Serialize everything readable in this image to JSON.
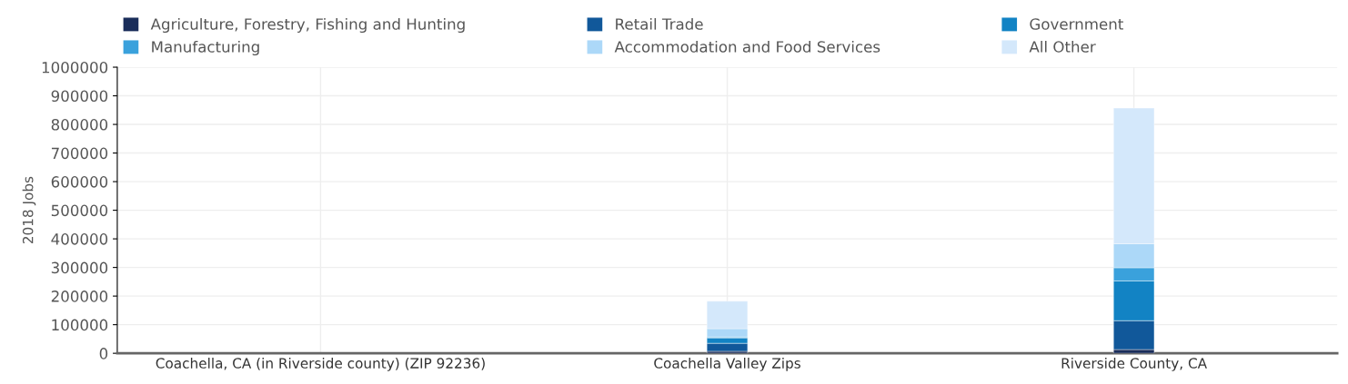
{
  "chart_data": {
    "type": "bar",
    "stacked": true,
    "ylabel": "2018 Jobs",
    "categories": [
      "Coachella, CA (in Riverside county) (ZIP 92236)",
      "Coachella Valley Zips",
      "Riverside County, CA"
    ],
    "series": [
      {
        "name": "Agriculture, Forestry, Fishing and Hunting",
        "color": "#1a2d5a",
        "values": [
          null,
          7000,
          13000
        ]
      },
      {
        "name": "Retail Trade",
        "color": "#11589a",
        "values": [
          null,
          28000,
          101000
        ]
      },
      {
        "name": "Government",
        "color": "#1283c4",
        "values": [
          null,
          19000,
          139000
        ]
      },
      {
        "name": "Manufacturing",
        "color": "#3aa1dc",
        "values": [
          null,
          3000,
          46000
        ]
      },
      {
        "name": "Accommodation and Food Services",
        "color": "#acd8f8",
        "values": [
          null,
          29000,
          84000
        ]
      },
      {
        "name": "All Other",
        "color": "#d4e8fb",
        "values": [
          null,
          96000,
          474000
        ]
      }
    ],
    "ylim": [
      0,
      1000000
    ],
    "yticks": [
      0,
      100000,
      200000,
      300000,
      400000,
      500000,
      600000,
      700000,
      800000,
      900000,
      1000000
    ],
    "grid": true,
    "legend": "top left"
  }
}
